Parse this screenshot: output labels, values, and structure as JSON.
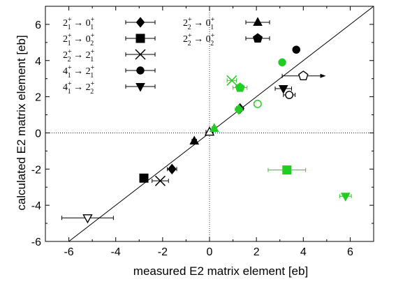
{
  "chart_data": {
    "type": "scatter",
    "xlabel": "measured E2 matrix element [eb]",
    "ylabel": "calculated E2 matrix element [eb]",
    "xlim": [
      -7,
      7
    ],
    "ylim": [
      -6,
      7
    ],
    "x_ticks": [
      -6,
      -4,
      -2,
      0,
      2,
      4,
      6
    ],
    "y_ticks": [
      -6,
      -4,
      -2,
      0,
      2,
      4,
      6
    ],
    "x_tick_labels": [
      "-6",
      "-4",
      "-2",
      "0",
      "2",
      "4",
      "6"
    ],
    "y_tick_labels": [
      "-6",
      "-4",
      "-2",
      "0",
      "2",
      "4",
      "6"
    ],
    "grid": false,
    "reference_lines": [
      {
        "kind": "diagonal",
        "description": "y = x",
        "style": "solid"
      },
      {
        "kind": "horizontal",
        "value": 0,
        "style": "dotted"
      },
      {
        "kind": "vertical",
        "value": 0,
        "style": "dotted"
      }
    ],
    "legend": {
      "placement": "top-left",
      "entries": [
        {
          "label": {
            "a": "2",
            "as": "+",
            "ai": "1",
            "b": "0",
            "bs": "+",
            "bi": "1"
          },
          "marker": "diamond"
        },
        {
          "label": {
            "a": "2",
            "as": "+",
            "ai": "1",
            "b": "0",
            "bs": "+",
            "bi": "2"
          },
          "marker": "square"
        },
        {
          "label": {
            "a": "2",
            "as": "+",
            "ai": "2",
            "b": "2",
            "bs": "+",
            "bi": "1"
          },
          "marker": "cross"
        },
        {
          "label": {
            "a": "4",
            "as": "+",
            "ai": "1",
            "b": "2",
            "bs": "+",
            "bi": "1"
          },
          "marker": "circle"
        },
        {
          "label": {
            "a": "4",
            "as": "+",
            "ai": "1",
            "b": "2",
            "bs": "+",
            "bi": "2"
          },
          "marker": "triangle-down"
        },
        {
          "label": {
            "a": "2",
            "as": "+",
            "ai": "2",
            "b": "0",
            "bs": "+",
            "bi": "1"
          },
          "marker": "triangle-up"
        },
        {
          "label": {
            "a": "2",
            "as": "+",
            "ai": "2",
            "b": "0",
            "bs": "+",
            "bi": "2"
          },
          "marker": "pentagon"
        }
      ]
    },
    "colors": {
      "black": "#000000",
      "green": "#22cc22"
    },
    "points": [
      {
        "marker": "square",
        "color": "black",
        "fill": "filled",
        "x": -2.8,
        "y": -2.5,
        "xerr": 0.15
      },
      {
        "marker": "cross",
        "color": "black",
        "fill": "filled",
        "x": -2.1,
        "y": -2.65,
        "xerr": 0.35
      },
      {
        "marker": "diamond",
        "color": "black",
        "fill": "filled",
        "x": -1.6,
        "y": -2.0,
        "xerr": 0.2
      },
      {
        "marker": "triangle-down",
        "color": "black",
        "fill": "open",
        "x": -5.2,
        "y": -4.7,
        "xerr": 1.1
      },
      {
        "marker": "triangle-up",
        "color": "black",
        "fill": "filled",
        "x": -0.65,
        "y": -0.45,
        "xerr": 0.1
      },
      {
        "marker": "triangle-up",
        "color": "black",
        "fill": "open",
        "x": 0.0,
        "y": 0.05,
        "xerr": 0.15
      },
      {
        "marker": "triangle-up",
        "color": "green",
        "fill": "filled",
        "x": 0.2,
        "y": 0.25,
        "xerr": 0.1
      },
      {
        "marker": "diamond",
        "color": "black",
        "fill": "filled",
        "x": 1.3,
        "y": 1.35,
        "xerr": 0.15
      },
      {
        "marker": "diamond",
        "color": "green",
        "fill": "filled",
        "x": 1.25,
        "y": 1.3,
        "xerr": 0.15
      },
      {
        "marker": "cross",
        "color": "green",
        "fill": "filled",
        "x": 0.95,
        "y": 2.9,
        "xerr": 0.2
      },
      {
        "marker": "pentagon",
        "color": "green",
        "fill": "filled",
        "x": 1.3,
        "y": 2.5,
        "xerr": 0.3
      },
      {
        "marker": "circle",
        "color": "green",
        "fill": "open",
        "x": 2.05,
        "y": 1.6,
        "xerr": 0.15
      },
      {
        "marker": "circle",
        "color": "green",
        "fill": "filled",
        "x": 3.1,
        "y": 3.9,
        "xerr": 0.0
      },
      {
        "marker": "circle",
        "color": "black",
        "fill": "filled",
        "x": 3.7,
        "y": 4.6,
        "xerr": 0.0
      },
      {
        "marker": "circle",
        "color": "black",
        "fill": "open",
        "x": 3.4,
        "y": 2.1,
        "xerr": 0.25
      },
      {
        "marker": "triangle-down",
        "color": "black",
        "fill": "filled",
        "x": 3.15,
        "y": 2.45,
        "xerr": 0.35
      },
      {
        "marker": "pentagon",
        "color": "black",
        "fill": "open",
        "x": 4.0,
        "y": 3.15,
        "xerr": 0.9,
        "arrow": "right"
      },
      {
        "marker": "square",
        "color": "green",
        "fill": "filled",
        "x": 3.3,
        "y": -2.05,
        "xerr": 0.8
      },
      {
        "marker": "triangle-down",
        "color": "green",
        "fill": "filled",
        "x": 5.8,
        "y": -3.5,
        "xerr": 0.25
      }
    ]
  }
}
